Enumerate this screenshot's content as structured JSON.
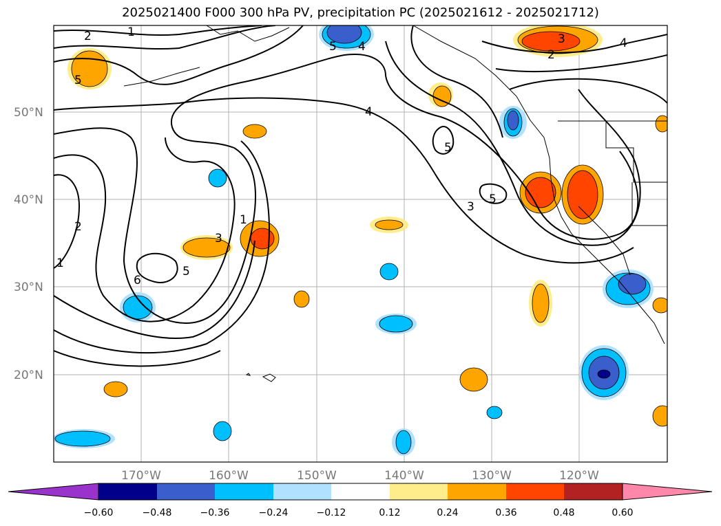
{
  "title": "2025021400 F000 300 hPa PV, precipitation PC (2025021612 - 2025021712)",
  "map": {
    "lat_labels": [
      "50°N",
      "40°N",
      "30°N",
      "20°N"
    ],
    "lon_labels": [
      "170°W",
      "160°W",
      "150°W",
      "140°W",
      "130°W",
      "120°W"
    ],
    "pv_contour_labels": [
      "2",
      "1",
      "5",
      "2",
      "3",
      "4",
      "5",
      "4",
      "5",
      "1",
      "3",
      "5",
      "3",
      "2",
      "4",
      "1",
      "6",
      "5"
    ]
  },
  "colorbar": {
    "tick_labels": [
      "−0.60",
      "−0.48",
      "−0.36",
      "−0.24",
      "−0.12",
      "0.12",
      "0.24",
      "0.36",
      "0.48",
      "0.60"
    ],
    "colors": [
      "#9933cc",
      "#00008b",
      "#3a5fcd",
      "#00bfff",
      "#b0e2ff",
      "#ffffff",
      "#ffec8b",
      "#ffa500",
      "#ff4500",
      "#b22222",
      "#ff88aa"
    ]
  }
}
